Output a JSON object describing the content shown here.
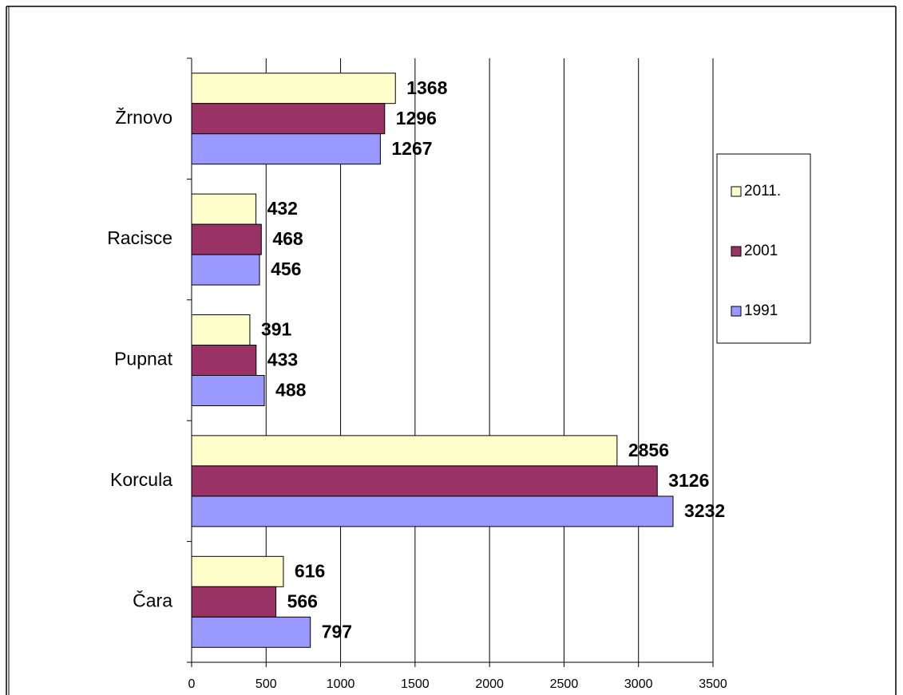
{
  "chart_data": {
    "type": "bar",
    "orientation": "horizontal",
    "categories": [
      "Žrnovo",
      "Racisce",
      "Pupnat",
      "Korcula",
      "Čara"
    ],
    "series": [
      {
        "name": "2011.",
        "color": "#ffffcc",
        "values": [
          1368,
          432,
          391,
          2856,
          616
        ]
      },
      {
        "name": "2001",
        "color": "#993366",
        "values": [
          1296,
          468,
          433,
          3126,
          566
        ]
      },
      {
        "name": "1991",
        "color": "#9999ff",
        "values": [
          1267,
          456,
          488,
          3232,
          797
        ]
      }
    ],
    "xlim": [
      0,
      3500
    ],
    "xticks": [
      0,
      500,
      1000,
      1500,
      2000,
      2500,
      3000,
      3500
    ],
    "grid": true,
    "legend": "right"
  }
}
